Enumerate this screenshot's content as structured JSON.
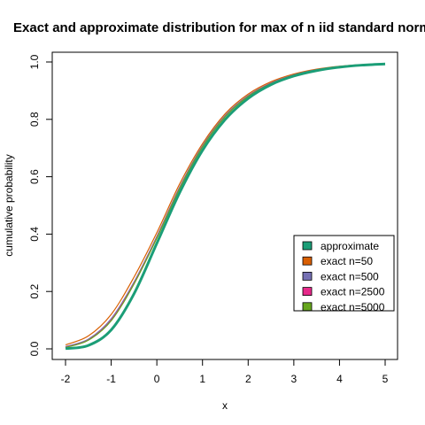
{
  "chart_data": {
    "type": "line",
    "title": "Exact and approximate distribution for max of n iid standard normals",
    "xlabel": "x",
    "ylabel": "cumulative probability",
    "xlim": [
      -2,
      5
    ],
    "ylim": [
      0,
      1
    ],
    "x_ticks": [
      "-2",
      "-1",
      "0",
      "1",
      "2",
      "3",
      "4",
      "5"
    ],
    "y_ticks": [
      "0.0",
      "0.2",
      "0.4",
      "0.6",
      "0.8",
      "1.0"
    ],
    "grid": false,
    "legend_position": "right",
    "x": [
      -2,
      -1.5,
      -1,
      -0.5,
      0,
      0.5,
      1,
      1.5,
      2,
      2.5,
      3,
      3.5,
      4,
      4.5,
      5
    ],
    "series": [
      {
        "name": "approximate",
        "color": "#1b9e77",
        "values": [
          0.001,
          0.012,
          0.066,
          0.192,
          0.368,
          0.545,
          0.692,
          0.8,
          0.873,
          0.921,
          0.951,
          0.97,
          0.982,
          0.989,
          0.993
        ]
      },
      {
        "name": "exact n=50",
        "color": "#d95f02",
        "values": [
          0.014,
          0.045,
          0.12,
          0.25,
          0.405,
          0.575,
          0.715,
          0.82,
          0.888,
          0.931,
          0.958,
          0.975,
          0.985,
          0.991,
          0.994
        ]
      },
      {
        "name": "exact n=500",
        "color": "#7570b3",
        "values": [
          0.008,
          0.034,
          0.105,
          0.233,
          0.392,
          0.564,
          0.708,
          0.814,
          0.883,
          0.927,
          0.955,
          0.973,
          0.983,
          0.99,
          0.994
        ]
      },
      {
        "name": "exact n=2500",
        "color": "#e7298a",
        "values": [
          0.006,
          0.031,
          0.1,
          0.228,
          0.388,
          0.56,
          0.705,
          0.811,
          0.881,
          0.926,
          0.954,
          0.972,
          0.983,
          0.99,
          0.994
        ]
      },
      {
        "name": "exact n=5000",
        "color": "#66a61e",
        "values": [
          0.005,
          0.03,
          0.098,
          0.226,
          0.386,
          0.559,
          0.704,
          0.81,
          0.88,
          0.925,
          0.954,
          0.972,
          0.983,
          0.99,
          0.994
        ]
      }
    ]
  }
}
